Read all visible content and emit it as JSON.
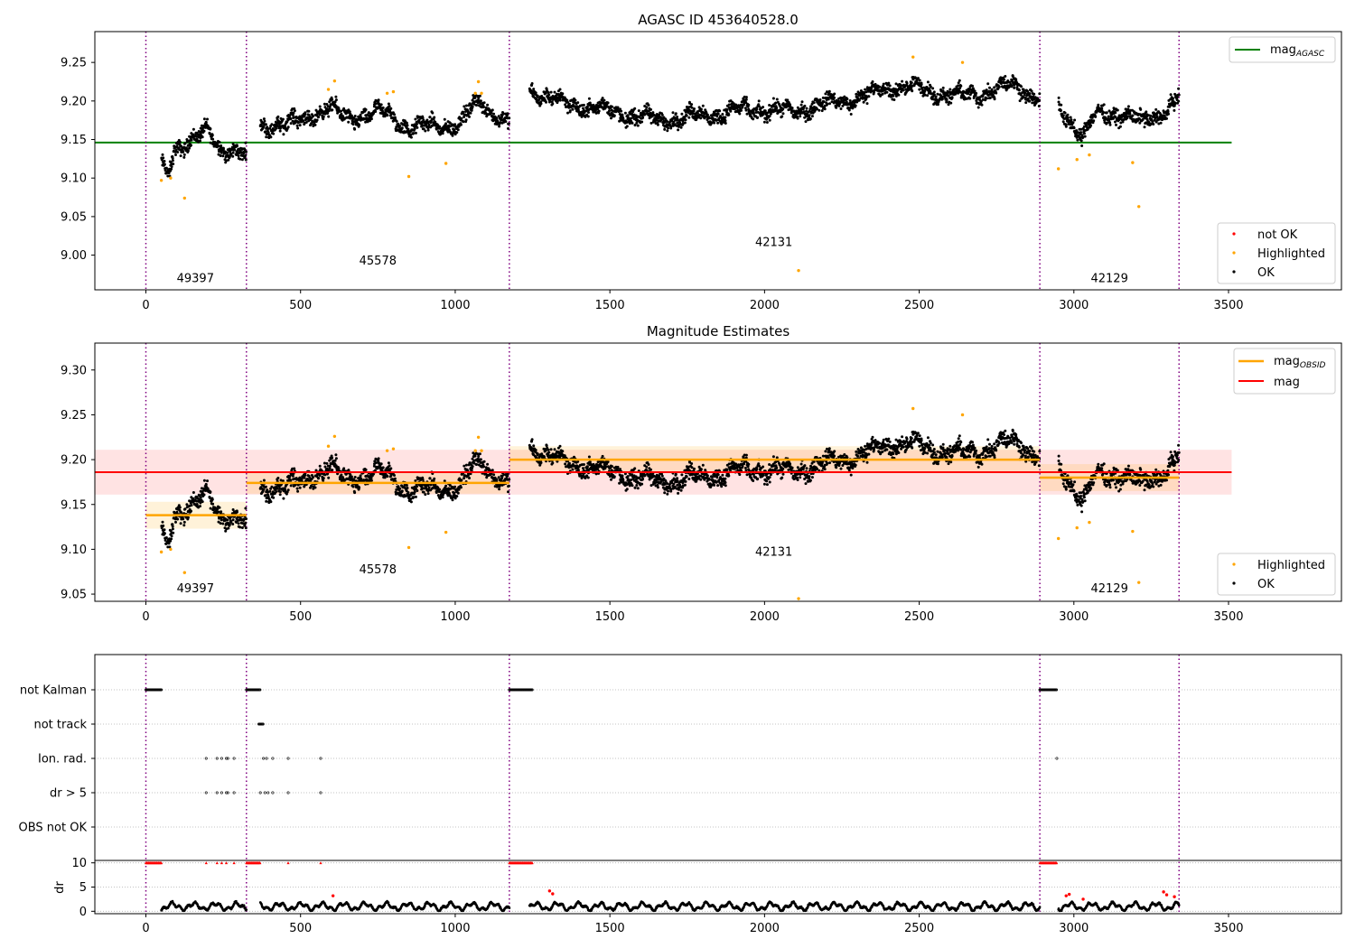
{
  "chart_data": [
    {
      "type": "scatter",
      "title": "AGASC ID 453640528.0",
      "xlim": [
        -165,
        3865
      ],
      "ylim": [
        8.955,
        9.29
      ],
      "x_ticks": [
        "0",
        "500",
        "1000",
        "1500",
        "2000",
        "2500",
        "3000",
        "3500"
      ],
      "y_ticks": [
        "9.25",
        "9.20",
        "9.15",
        "9.10",
        "9.05",
        "9.00"
      ],
      "obs_boundaries": [
        0,
        325,
        1175,
        2890,
        3340
      ],
      "obsid_labels": [
        {
          "text": "49397",
          "x": 160,
          "y": 8.965
        },
        {
          "text": "45578",
          "x": 750,
          "y": 8.988
        },
        {
          "text": "42131",
          "x": 2030,
          "y": 9.012
        },
        {
          "text": "42129",
          "x": 3115,
          "y": 8.965
        }
      ],
      "agasc_mag": 9.146,
      "agasc_mag_xrange": [
        -165,
        3510
      ],
      "segments": [
        {
          "x": [
            50,
            325
          ],
          "shape": [
            [
              0,
              9.115
            ],
            [
              0.08,
              9.105
            ],
            [
              0.15,
              9.14
            ],
            [
              0.4,
              9.15
            ],
            [
              0.55,
              9.16
            ],
            [
              0.7,
              9.14
            ],
            [
              0.85,
              9.135
            ],
            [
              1,
              9.128
            ]
          ],
          "noise": 0.008
        },
        {
          "x": [
            370,
            1175
          ],
          "shape": [
            [
              0,
              9.17
            ],
            [
              0.1,
              9.168
            ],
            [
              0.27,
              9.19
            ],
            [
              0.35,
              9.178
            ],
            [
              0.5,
              9.185
            ],
            [
              0.6,
              9.165
            ],
            [
              0.8,
              9.17
            ],
            [
              0.88,
              9.2
            ],
            [
              1,
              9.17
            ]
          ],
          "noise": 0.008
        },
        {
          "x": [
            1240,
            2890
          ],
          "shape": [
            [
              0,
              9.215
            ],
            [
              0.05,
              9.2
            ],
            [
              0.25,
              9.175
            ],
            [
              0.45,
              9.19
            ],
            [
              0.5,
              9.185
            ],
            [
              0.65,
              9.205
            ],
            [
              0.72,
              9.22
            ],
            [
              0.85,
              9.205
            ],
            [
              0.95,
              9.22
            ],
            [
              1,
              9.205
            ]
          ],
          "noise": 0.008
        },
        {
          "x": [
            2950,
            3340
          ],
          "shape": [
            [
              0,
              9.19
            ],
            [
              0.1,
              9.175
            ],
            [
              0.2,
              9.155
            ],
            [
              0.3,
              9.18
            ],
            [
              0.55,
              9.185
            ],
            [
              0.7,
              9.17
            ],
            [
              0.85,
              9.185
            ],
            [
              1,
              9.205
            ]
          ],
          "noise": 0.008
        }
      ],
      "highlighted_points": [
        [
          50,
          9.097
        ],
        [
          80,
          9.1
        ],
        [
          125,
          9.074
        ],
        [
          590,
          9.215
        ],
        [
          610,
          9.226
        ],
        [
          780,
          9.21
        ],
        [
          800,
          9.212
        ],
        [
          850,
          9.102
        ],
        [
          970,
          9.119
        ],
        [
          1075,
          9.225
        ],
        [
          1085,
          9.21
        ],
        [
          1065,
          9.21
        ],
        [
          2110,
          8.98
        ],
        [
          2480,
          9.257
        ],
        [
          2640,
          9.25
        ],
        [
          2950,
          9.112
        ],
        [
          3010,
          9.124
        ],
        [
          3050,
          9.13
        ],
        [
          3190,
          9.12
        ],
        [
          3210,
          9.063
        ]
      ],
      "legend_top": [
        {
          "label": "mag",
          "subscript": "AGASC",
          "color": "#008000"
        }
      ],
      "legend_bottom": [
        {
          "label": "not OK",
          "color": "#ff0000"
        },
        {
          "label": "Highlighted",
          "color": "#ffa500"
        },
        {
          "label": "OK",
          "color": "#000000"
        }
      ]
    },
    {
      "type": "scatter",
      "title": "Magnitude Estimates",
      "xlim": [
        -165,
        3865
      ],
      "ylim": [
        9.042,
        9.33
      ],
      "x_ticks": [
        "0",
        "500",
        "1000",
        "1500",
        "2000",
        "2500",
        "3000",
        "3500"
      ],
      "y_ticks": [
        "9.30",
        "9.25",
        "9.20",
        "9.15",
        "9.10",
        "9.05"
      ],
      "obsid_labels": [
        {
          "text": "49397",
          "x": 160,
          "y": 9.052
        },
        {
          "text": "45578",
          "x": 750,
          "y": 9.073
        },
        {
          "text": "42131",
          "x": 2030,
          "y": 9.093
        },
        {
          "text": "42129",
          "x": 3115,
          "y": 9.052
        }
      ],
      "mag": 9.186,
      "mag_band": [
        9.161,
        9.211
      ],
      "mag_xrange": [
        -165,
        3510
      ],
      "obsid_mags": [
        {
          "x": [
            0,
            325
          ],
          "mag": 9.138,
          "band": [
            9.123,
            9.153
          ]
        },
        {
          "x": [
            325,
            1175
          ],
          "mag": 9.174,
          "band": [
            9.162,
            9.186
          ]
        },
        {
          "x": [
            1175,
            2890
          ],
          "mag": 9.2,
          "band": [
            9.185,
            9.215
          ]
        },
        {
          "x": [
            2890,
            3340
          ],
          "mag": 9.18,
          "band": [
            9.165,
            9.195
          ]
        }
      ],
      "legend_top": [
        {
          "label": "mag",
          "subscript": "OBSID",
          "color": "#ffa500"
        },
        {
          "label": "mag",
          "color": "#ff0000"
        }
      ],
      "legend_bottom": [
        {
          "label": "Highlighted",
          "color": "#ffa500"
        },
        {
          "label": "OK",
          "color": "#000000"
        }
      ]
    },
    {
      "type": "scatter",
      "title": "",
      "xlim": [
        -165,
        3865
      ],
      "x_ticks": [
        "0",
        "500",
        "1000",
        "1500",
        "2000",
        "2500",
        "3000",
        "3500"
      ],
      "flag_rows": [
        "not Kalman",
        "not track",
        "Ion. rad.",
        "dr > 5",
        "OBS not OK"
      ],
      "flags": {
        "not Kalman": [
          [
            0,
            50
          ],
          [
            325,
            370
          ],
          [
            1175,
            1250
          ],
          [
            2890,
            2945
          ]
        ],
        "not track": [
          [
            365,
            380
          ]
        ],
        "Ion. rad.": [
          195,
          230,
          245,
          260,
          265,
          285,
          380,
          390,
          410,
          460,
          565,
          2945
        ],
        "dr > 5": [
          195,
          230,
          245,
          260,
          265,
          285,
          370,
          385,
          395,
          410,
          460,
          565
        ]
      },
      "dr_ylabel": "dr",
      "dr_ticks": [
        "10",
        "5",
        "0"
      ],
      "dr_ylim": [
        -0.5,
        10.5
      ],
      "dr_clipped": [
        [
          0,
          50
        ],
        [
          325,
          370
        ],
        [
          1175,
          1250
        ],
        [
          2890,
          2945
        ]
      ],
      "dr_clipped_points": [
        195,
        230,
        245,
        260,
        285,
        460,
        565
      ],
      "dr_red_points": [
        [
          605,
          3.2
        ],
        [
          1305,
          4.2
        ],
        [
          1315,
          3.6
        ],
        [
          2975,
          3.2
        ],
        [
          2985,
          3.5
        ],
        [
          3030,
          2.5
        ],
        [
          3290,
          4.0
        ],
        [
          3300,
          3.4
        ],
        [
          3325,
          3.0
        ]
      ]
    }
  ]
}
